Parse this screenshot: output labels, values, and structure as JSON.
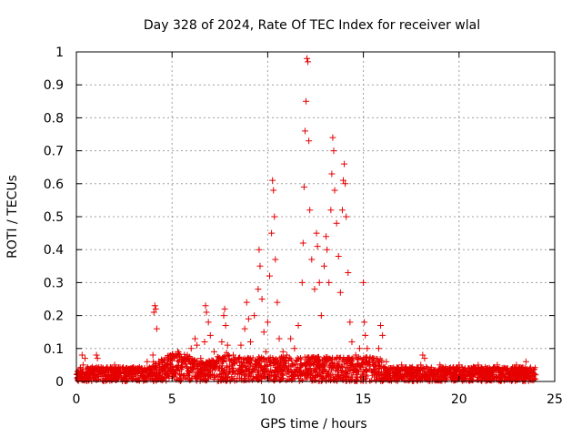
{
  "chart_data": {
    "type": "scatter",
    "title": "Day 328 of 2024, Rate Of TEC Index for receiver wlal",
    "xlabel": "GPS time / hours",
    "ylabel": "ROTI / TECUs",
    "xlim": [
      0,
      25
    ],
    "ylim": [
      0,
      1
    ],
    "xticks": [
      0,
      5,
      10,
      15,
      20,
      25
    ],
    "yticks": [
      0,
      0.1,
      0.2,
      0.3,
      0.4,
      0.5,
      0.6,
      0.7,
      0.8,
      0.9,
      1
    ],
    "xtick_labels": [
      "0",
      "5",
      "10",
      "15",
      "20",
      "25"
    ],
    "ytick_labels": [
      "0",
      "0.1",
      "0.2",
      "0.3",
      "0.4",
      "0.5",
      "0.6",
      "0.7",
      "0.8",
      "0.9",
      "1"
    ],
    "grid": true,
    "marker": "plus",
    "marker_color": "#e60000",
    "series": [
      {
        "points": [
          [
            0.05,
            0.01
          ],
          [
            0.2,
            0.03
          ],
          [
            0.3,
            0.08
          ],
          [
            0.35,
            0.05
          ],
          [
            0.45,
            0.07
          ],
          [
            0.6,
            0.02
          ],
          [
            0.8,
            0.03
          ],
          [
            1.0,
            0.04
          ],
          [
            1.05,
            0.08
          ],
          [
            1.1,
            0.07
          ],
          [
            1.3,
            0.03
          ],
          [
            1.6,
            0.04
          ],
          [
            1.8,
            0.02
          ],
          [
            2.0,
            0.05
          ],
          [
            2.3,
            0.03
          ],
          [
            2.6,
            0.04
          ],
          [
            2.9,
            0.02
          ],
          [
            3.2,
            0.04
          ],
          [
            3.5,
            0.03
          ],
          [
            3.7,
            0.06
          ],
          [
            3.9,
            0.04
          ],
          [
            4.0,
            0.08
          ],
          [
            4.05,
            0.21
          ],
          [
            4.1,
            0.23
          ],
          [
            4.15,
            0.22
          ],
          [
            4.2,
            0.16
          ],
          [
            4.3,
            0.06
          ],
          [
            4.6,
            0.04
          ],
          [
            4.9,
            0.05
          ],
          [
            5.1,
            0.07
          ],
          [
            5.3,
            0.09
          ],
          [
            5.6,
            0.06
          ],
          [
            5.8,
            0.08
          ],
          [
            6.0,
            0.1
          ],
          [
            6.2,
            0.13
          ],
          [
            6.3,
            0.11
          ],
          [
            6.5,
            0.07
          ],
          [
            6.7,
            0.12
          ],
          [
            6.75,
            0.23
          ],
          [
            6.8,
            0.21
          ],
          [
            6.9,
            0.18
          ],
          [
            7.0,
            0.14
          ],
          [
            7.2,
            0.09
          ],
          [
            7.5,
            0.07
          ],
          [
            7.6,
            0.12
          ],
          [
            7.7,
            0.2
          ],
          [
            7.75,
            0.22
          ],
          [
            7.8,
            0.17
          ],
          [
            7.9,
            0.11
          ],
          [
            8.2,
            0.08
          ],
          [
            8.4,
            0.06
          ],
          [
            8.6,
            0.11
          ],
          [
            8.8,
            0.16
          ],
          [
            8.9,
            0.24
          ],
          [
            9.0,
            0.19
          ],
          [
            9.1,
            0.12
          ],
          [
            9.3,
            0.2
          ],
          [
            9.5,
            0.28
          ],
          [
            9.55,
            0.4
          ],
          [
            9.6,
            0.35
          ],
          [
            9.7,
            0.25
          ],
          [
            9.8,
            0.15
          ],
          [
            9.9,
            0.09
          ],
          [
            10.0,
            0.18
          ],
          [
            10.1,
            0.32
          ],
          [
            10.2,
            0.45
          ],
          [
            10.25,
            0.61
          ],
          [
            10.3,
            0.58
          ],
          [
            10.35,
            0.5
          ],
          [
            10.4,
            0.37
          ],
          [
            10.5,
            0.24
          ],
          [
            10.6,
            0.13
          ],
          [
            10.8,
            0.09
          ],
          [
            11.0,
            0.08
          ],
          [
            11.2,
            0.13
          ],
          [
            11.4,
            0.1
          ],
          [
            11.6,
            0.17
          ],
          [
            11.8,
            0.3
          ],
          [
            11.85,
            0.42
          ],
          [
            11.9,
            0.59
          ],
          [
            11.95,
            0.76
          ],
          [
            12.0,
            0.85
          ],
          [
            12.05,
            0.98
          ],
          [
            12.1,
            0.97
          ],
          [
            12.15,
            0.73
          ],
          [
            12.2,
            0.52
          ],
          [
            12.3,
            0.37
          ],
          [
            12.45,
            0.28
          ],
          [
            12.55,
            0.45
          ],
          [
            12.6,
            0.41
          ],
          [
            12.7,
            0.3
          ],
          [
            12.8,
            0.2
          ],
          [
            12.95,
            0.35
          ],
          [
            13.05,
            0.44
          ],
          [
            13.1,
            0.4
          ],
          [
            13.2,
            0.3
          ],
          [
            13.3,
            0.52
          ],
          [
            13.35,
            0.63
          ],
          [
            13.4,
            0.74
          ],
          [
            13.45,
            0.7
          ],
          [
            13.5,
            0.58
          ],
          [
            13.6,
            0.48
          ],
          [
            13.7,
            0.38
          ],
          [
            13.8,
            0.27
          ],
          [
            13.9,
            0.52
          ],
          [
            13.95,
            0.61
          ],
          [
            14.0,
            0.66
          ],
          [
            14.05,
            0.6
          ],
          [
            14.1,
            0.5
          ],
          [
            14.2,
            0.33
          ],
          [
            14.3,
            0.18
          ],
          [
            14.4,
            0.12
          ],
          [
            14.6,
            0.08
          ],
          [
            14.8,
            0.1
          ],
          [
            15.0,
            0.3
          ],
          [
            15.05,
            0.18
          ],
          [
            15.1,
            0.14
          ],
          [
            15.2,
            0.1
          ],
          [
            15.5,
            0.07
          ],
          [
            15.8,
            0.1
          ],
          [
            15.9,
            0.17
          ],
          [
            16.0,
            0.14
          ],
          [
            16.2,
            0.06
          ],
          [
            16.5,
            0.04
          ],
          [
            17.0,
            0.05
          ],
          [
            17.5,
            0.04
          ],
          [
            18.0,
            0.05
          ],
          [
            18.1,
            0.08
          ],
          [
            18.2,
            0.07
          ],
          [
            18.5,
            0.03
          ],
          [
            19.0,
            0.05
          ],
          [
            19.5,
            0.04
          ],
          [
            20.0,
            0.05
          ],
          [
            20.5,
            0.04
          ],
          [
            21.0,
            0.05
          ],
          [
            21.5,
            0.04
          ],
          [
            22.0,
            0.05
          ],
          [
            22.5,
            0.04
          ],
          [
            23.0,
            0.05
          ],
          [
            23.5,
            0.06
          ],
          [
            23.8,
            0.03
          ],
          [
            24.0,
            0.02
          ]
        ]
      }
    ]
  }
}
